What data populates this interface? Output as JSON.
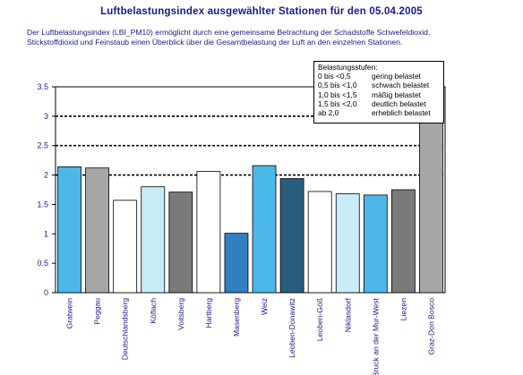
{
  "title": "Luftbelastungsindex ausgewählter Stationen für den 05.04.2005",
  "description": "Der Luftbelastungsindex (LBI_PM10) ermöglicht durch eine gemeinsame Betrachtung der Schadstoffe Schwefeldioxid, Stickstoffdioxid und Feinstaub einen Überblick über die Gesamtbelastung der Luft an den einzelnen Stationen.",
  "legend": {
    "title": "Belastungsstufen:",
    "rows": [
      {
        "range": "0 bis <0,5",
        "label": "gering belastet"
      },
      {
        "range": "0,5 bis <1,0",
        "label": "schwach belastet"
      },
      {
        "range": "1,0 bis <1,5",
        "label": "mäßig belastet"
      },
      {
        "range": "1,5 bis <2,0",
        "label": "deutlich belastet"
      },
      {
        "range": "ab 2,0",
        "label": "erheblich belastet"
      }
    ]
  },
  "chart_data": {
    "type": "bar",
    "title": "Luftbelastungsindex ausgewählter Stationen für den 05.04.2005",
    "ylim": [
      0,
      3.5
    ],
    "yticks": [
      "0",
      "0.5",
      "1",
      "1.5",
      "2",
      "2.5",
      "3",
      "3.5"
    ],
    "ytick_values": [
      0,
      0.5,
      1,
      1.5,
      2,
      2.5,
      3,
      3.5
    ],
    "grid": "dashed horizontal at 2.0, 2.5, 3.0",
    "legend_placement": "top-right",
    "categories": [
      "Gratwein",
      "Peggau",
      "Deutschlandsberg",
      "Köflach",
      "Voitsberg",
      "Hartberg",
      "Masenberg",
      "Weiz",
      "Leoben-Donawitz",
      "Leoben-Göß",
      "Niklasdorf",
      "Bruck an der Mur-West",
      "Liezen",
      "Graz-Don Bosco"
    ],
    "values": [
      2.14,
      2.12,
      1.57,
      1.8,
      1.71,
      2.06,
      1.01,
      2.16,
      1.94,
      1.72,
      1.68,
      1.66,
      1.75,
      3.5
    ],
    "colors": [
      "#4bb8e8",
      "#a6a6a6",
      "#ffffff",
      "#c8ecf8",
      "#7a7a7a",
      "#ffffff",
      "#2f7fc2",
      "#4bb8e8",
      "#2a5d7d",
      "#ffffff",
      "#c8ecf8",
      "#4bb8e8",
      "#7a7a7a",
      "#a6a6a6"
    ]
  }
}
